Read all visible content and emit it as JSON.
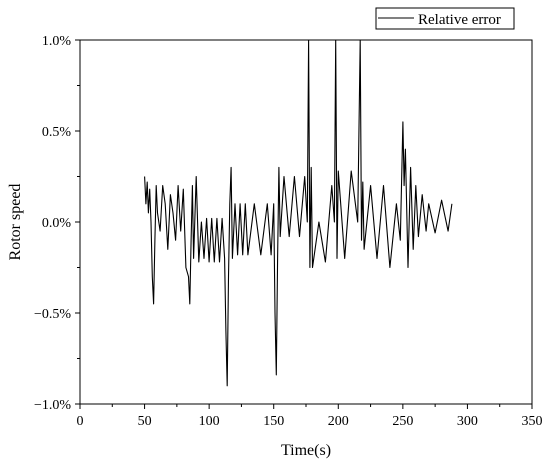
{
  "chart_data": {
    "type": "line",
    "title": "",
    "xlabel": "Time(s)",
    "ylabel": "Rotor speed",
    "xlim": [
      0,
      350
    ],
    "ylim": [
      -1.0,
      1.0
    ],
    "xticks": [
      0,
      50,
      100,
      150,
      200,
      250,
      300,
      350
    ],
    "yticks": [
      -1.0,
      -0.5,
      0.0,
      0.5,
      1.0
    ],
    "xtick_labels": [
      "0",
      "50",
      "100",
      "150",
      "200",
      "250",
      "300",
      "350"
    ],
    "ytick_labels": [
      "−1.0%",
      "−0.5%",
      "0.0%",
      "0.5%",
      "1.0%"
    ],
    "legend_position": "top-right",
    "grid": false,
    "line_color": "#000000",
    "series": [
      {
        "name": "Relative error",
        "x": [
          50,
          51,
          52,
          53,
          54,
          55,
          56,
          57,
          58,
          59,
          60,
          62,
          64,
          66,
          68,
          70,
          72,
          74,
          76,
          78,
          80,
          82,
          84,
          85,
          86,
          87,
          88,
          90,
          92,
          94,
          96,
          98,
          100,
          102,
          104,
          106,
          108,
          110,
          112,
          113,
          114,
          115,
          116,
          117,
          118,
          120,
          122,
          124,
          126,
          128,
          130,
          135,
          140,
          145,
          148,
          150,
          151,
          152,
          153,
          154,
          155,
          158,
          162,
          166,
          170,
          174,
          176,
          177,
          178,
          179,
          180,
          185,
          190,
          195,
          197,
          198,
          199,
          200,
          205,
          210,
          215,
          217,
          218,
          219,
          220,
          225,
          230,
          235,
          240,
          245,
          248,
          250,
          251,
          252,
          254,
          256,
          258,
          260,
          262,
          265,
          268,
          270,
          275,
          280,
          285,
          288
        ],
        "y": [
          0.25,
          0.1,
          0.22,
          0.05,
          0.18,
          0.0,
          -0.3,
          -0.45,
          -0.1,
          0.2,
          0.05,
          -0.05,
          0.2,
          0.1,
          -0.15,
          0.15,
          0.05,
          -0.1,
          0.2,
          -0.05,
          0.18,
          -0.25,
          -0.3,
          -0.45,
          -0.1,
          0.2,
          -0.2,
          0.25,
          -0.22,
          0.0,
          -0.2,
          0.02,
          -0.22,
          0.02,
          -0.22,
          0.02,
          -0.22,
          0.02,
          -0.2,
          -0.6,
          -0.9,
          -0.3,
          0.1,
          0.3,
          -0.2,
          0.1,
          -0.18,
          0.1,
          -0.18,
          0.1,
          -0.18,
          0.1,
          -0.18,
          0.1,
          -0.18,
          0.1,
          -0.5,
          -0.84,
          -0.2,
          0.3,
          -0.08,
          0.25,
          -0.08,
          0.25,
          -0.08,
          0.25,
          0.0,
          1.0,
          -0.25,
          0.3,
          -0.25,
          0.0,
          -0.22,
          0.2,
          0.0,
          1.0,
          -0.2,
          0.28,
          -0.2,
          0.28,
          0.0,
          1.0,
          -0.1,
          0.22,
          -0.15,
          0.2,
          -0.2,
          0.2,
          -0.25,
          0.1,
          -0.1,
          0.55,
          0.2,
          0.4,
          -0.25,
          0.3,
          -0.15,
          0.2,
          -0.08,
          0.15,
          -0.05,
          0.1,
          -0.06,
          0.12,
          -0.05,
          0.1
        ]
      }
    ]
  }
}
